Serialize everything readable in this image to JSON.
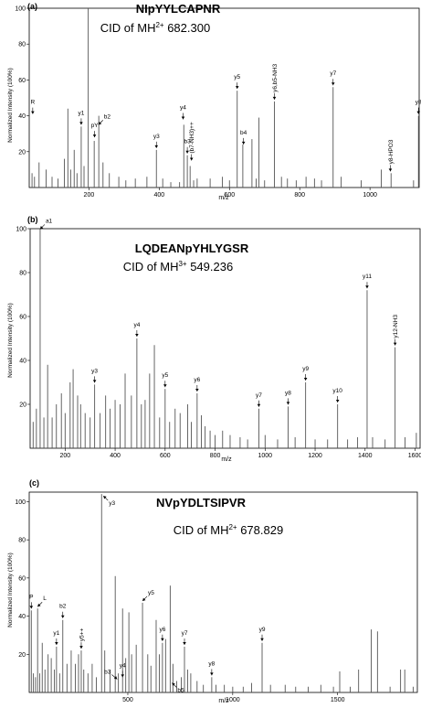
{
  "chart_data": [
    {
      "type": "bar",
      "panel_label": "(a)",
      "peptide": "NIpYYLCAPNR",
      "subtitle_prefix": "CID of MH",
      "charge": "2+",
      "precursor_mz": "682.300",
      "xlabel": "m/z",
      "ylabel": "Normalized Intensity (100%)",
      "xlim": [
        30,
        1140
      ],
      "ylim": [
        0,
        100
      ],
      "xticks": [
        200,
        400,
        600,
        800,
        1000
      ],
      "yticks": [
        20,
        40,
        60,
        80,
        100
      ],
      "peaks": [
        [
          38,
          8
        ],
        [
          45,
          6
        ],
        [
          58,
          14
        ],
        [
          78,
          10
        ],
        [
          95,
          6
        ],
        [
          112,
          5
        ],
        [
          130,
          16
        ],
        [
          140,
          44
        ],
        [
          148,
          10
        ],
        [
          158,
          21
        ],
        [
          166,
          8
        ],
        [
          178,
          34
        ],
        [
          186,
          12
        ],
        [
          198,
          100
        ],
        [
          215,
          26
        ],
        [
          228,
          40
        ],
        [
          240,
          14
        ],
        [
          258,
          8
        ],
        [
          285,
          6
        ],
        [
          305,
          4
        ],
        [
          332,
          5
        ],
        [
          365,
          6
        ],
        [
          392,
          21
        ],
        [
          410,
          5
        ],
        [
          433,
          3
        ],
        [
          458,
          3
        ],
        [
          470,
          35
        ],
        [
          480,
          18
        ],
        [
          488,
          12
        ],
        [
          498,
          4
        ],
        [
          508,
          5
        ],
        [
          545,
          5
        ],
        [
          580,
          6
        ],
        [
          600,
          4
        ],
        [
          622,
          54
        ],
        [
          638,
          24
        ],
        [
          664,
          27
        ],
        [
          676,
          5
        ],
        [
          684,
          39
        ],
        [
          700,
          4
        ],
        [
          728,
          48
        ],
        [
          748,
          6
        ],
        [
          765,
          5
        ],
        [
          790,
          4
        ],
        [
          818,
          6
        ],
        [
          842,
          5
        ],
        [
          862,
          4
        ],
        [
          895,
          56
        ],
        [
          918,
          6
        ],
        [
          975,
          4
        ],
        [
          1032,
          10
        ],
        [
          1060,
          8
        ],
        [
          1124,
          4
        ],
        [
          1138,
          40
        ]
      ],
      "annotations": [
        {
          "text": "R",
          "x": 40,
          "y": 40,
          "dir": "down"
        },
        {
          "text": "y1",
          "x": 178,
          "y": 34,
          "dir": "down"
        },
        {
          "text": "pY",
          "x": 216,
          "y": 27,
          "dir": "down"
        },
        {
          "text": "b2",
          "x": 227,
          "y": 34,
          "dir": "ul"
        },
        {
          "text": "y3",
          "x": 392,
          "y": 21,
          "dir": "down"
        },
        {
          "text": "y4",
          "x": 468,
          "y": 37,
          "dir": "down"
        },
        {
          "text": "b3",
          "x": 480,
          "y": 18,
          "dir": "down"
        },
        {
          "text": "(b7-NH3)++",
          "x": 492,
          "y": 14,
          "dir": "down",
          "rot": true
        },
        {
          "text": "y5",
          "x": 622,
          "y": 54,
          "dir": "down"
        },
        {
          "text": "b4",
          "x": 640,
          "y": 23,
          "dir": "down"
        },
        {
          "text": "y6,b5-NH3",
          "x": 728,
          "y": 48,
          "dir": "down",
          "rot": true
        },
        {
          "text": "y7",
          "x": 895,
          "y": 56,
          "dir": "down"
        },
        {
          "text": "y8-HPO3",
          "x": 1058,
          "y": 8,
          "dir": "down",
          "rot": true
        },
        {
          "text": "y8",
          "x": 1138,
          "y": 40,
          "dir": "down"
        }
      ]
    },
    {
      "type": "bar",
      "panel_label": "(b)",
      "peptide": "LQDEANpYHLYGSR",
      "subtitle_prefix": "CID of MH",
      "charge": "3+",
      "precursor_mz": "549.236",
      "xlabel": "m/z",
      "ylabel": "Normalized Intensity (100%)",
      "xlim": [
        60,
        1620
      ],
      "ylim": [
        0,
        100
      ],
      "xticks": [
        200,
        400,
        600,
        800,
        1000,
        1200,
        1400,
        1600
      ],
      "yticks": [
        20,
        40,
        60,
        80,
        100
      ],
      "peaks": [
        [
          72,
          12
        ],
        [
          85,
          18
        ],
        [
          100,
          100
        ],
        [
          115,
          14
        ],
        [
          130,
          38
        ],
        [
          148,
          14
        ],
        [
          165,
          20
        ],
        [
          185,
          25
        ],
        [
          200,
          16
        ],
        [
          220,
          30
        ],
        [
          232,
          36
        ],
        [
          250,
          24
        ],
        [
          262,
          20
        ],
        [
          280,
          16
        ],
        [
          300,
          14
        ],
        [
          318,
          29
        ],
        [
          340,
          16
        ],
        [
          362,
          24
        ],
        [
          380,
          18
        ],
        [
          400,
          22
        ],
        [
          420,
          20
        ],
        [
          440,
          34
        ],
        [
          465,
          24
        ],
        [
          487,
          50
        ],
        [
          505,
          20
        ],
        [
          520,
          22
        ],
        [
          538,
          34
        ],
        [
          557,
          47
        ],
        [
          578,
          14
        ],
        [
          600,
          27
        ],
        [
          618,
          12
        ],
        [
          640,
          18
        ],
        [
          660,
          16
        ],
        [
          690,
          20
        ],
        [
          705,
          12
        ],
        [
          728,
          25
        ],
        [
          745,
          15
        ],
        [
          760,
          10
        ],
        [
          780,
          8
        ],
        [
          800,
          6
        ],
        [
          830,
          8
        ],
        [
          860,
          6
        ],
        [
          900,
          5
        ],
        [
          930,
          4
        ],
        [
          975,
          18
        ],
        [
          1000,
          6
        ],
        [
          1050,
          4
        ],
        [
          1092,
          19
        ],
        [
          1120,
          5
        ],
        [
          1162,
          30
        ],
        [
          1200,
          4
        ],
        [
          1250,
          4
        ],
        [
          1290,
          20
        ],
        [
          1330,
          4
        ],
        [
          1370,
          5
        ],
        [
          1408,
          72
        ],
        [
          1430,
          5
        ],
        [
          1480,
          4
        ],
        [
          1520,
          46
        ],
        [
          1560,
          5
        ],
        [
          1605,
          7
        ]
      ],
      "annotations": [
        {
          "text": "a1",
          "x": 100,
          "y": 99,
          "dir": "ul"
        },
        {
          "text": "y3",
          "x": 318,
          "y": 29,
          "dir": "down"
        },
        {
          "text": "y4",
          "x": 487,
          "y": 50,
          "dir": "down"
        },
        {
          "text": "y5",
          "x": 600,
          "y": 27,
          "dir": "down"
        },
        {
          "text": "y6",
          "x": 728,
          "y": 25,
          "dir": "down"
        },
        {
          "text": "y7",
          "x": 975,
          "y": 18,
          "dir": "down"
        },
        {
          "text": "y8",
          "x": 1092,
          "y": 19,
          "dir": "down"
        },
        {
          "text": "y9",
          "x": 1162,
          "y": 30,
          "dir": "down"
        },
        {
          "text": "y10",
          "x": 1290,
          "y": 20,
          "dir": "down"
        },
        {
          "text": "y11",
          "x": 1408,
          "y": 72,
          "dir": "down"
        },
        {
          "text": "y12-NH3",
          "x": 1520,
          "y": 46,
          "dir": "down",
          "rot": true
        }
      ]
    },
    {
      "type": "bar",
      "panel_label": "(c)",
      "peptide": "NVpYDLTSIPVR",
      "subtitle_prefix": "CID of MH",
      "charge": "2+",
      "precursor_mz": "678.829",
      "xlabel": "m/z",
      "ylabel": "Normalized Intensity (100%)",
      "xlim": [
        30,
        1880
      ],
      "ylim": [
        0,
        105
      ],
      "xticks": [
        500,
        1000,
        1500
      ],
      "yticks": [
        20,
        40,
        60,
        80,
        100
      ],
      "peaks": [
        [
          40,
          43
        ],
        [
          50,
          10
        ],
        [
          60,
          8
        ],
        [
          70,
          44
        ],
        [
          80,
          10
        ],
        [
          92,
          26
        ],
        [
          105,
          12
        ],
        [
          120,
          20
        ],
        [
          135,
          18
        ],
        [
          150,
          12
        ],
        [
          160,
          24
        ],
        [
          175,
          10
        ],
        [
          190,
          38
        ],
        [
          210,
          15
        ],
        [
          230,
          22
        ],
        [
          250,
          15
        ],
        [
          265,
          20
        ],
        [
          278,
          22
        ],
        [
          290,
          12
        ],
        [
          310,
          10
        ],
        [
          330,
          15
        ],
        [
          350,
          8
        ],
        [
          375,
          104
        ],
        [
          390,
          22
        ],
        [
          415,
          12
        ],
        [
          440,
          61
        ],
        [
          455,
          10
        ],
        [
          475,
          44
        ],
        [
          490,
          18
        ],
        [
          505,
          42
        ],
        [
          518,
          20
        ],
        [
          540,
          25
        ],
        [
          570,
          47
        ],
        [
          595,
          20
        ],
        [
          610,
          14
        ],
        [
          635,
          38
        ],
        [
          650,
          20
        ],
        [
          665,
          26
        ],
        [
          680,
          28
        ],
        [
          702,
          56
        ],
        [
          715,
          15
        ],
        [
          733,
          6
        ],
        [
          755,
          8
        ],
        [
          770,
          24
        ],
        [
          785,
          12
        ],
        [
          800,
          10
        ],
        [
          830,
          6
        ],
        [
          860,
          4
        ],
        [
          900,
          8
        ],
        [
          920,
          4
        ],
        [
          960,
          4
        ],
        [
          1000,
          3
        ],
        [
          1050,
          3
        ],
        [
          1090,
          5
        ],
        [
          1140,
          26
        ],
        [
          1180,
          4
        ],
        [
          1250,
          4
        ],
        [
          1300,
          3
        ],
        [
          1360,
          3
        ],
        [
          1420,
          4
        ],
        [
          1480,
          3
        ],
        [
          1510,
          11
        ],
        [
          1560,
          3
        ],
        [
          1600,
          12
        ],
        [
          1660,
          33
        ],
        [
          1690,
          32
        ],
        [
          1750,
          3
        ],
        [
          1800,
          12
        ],
        [
          1820,
          12
        ],
        [
          1860,
          3
        ]
      ],
      "annotations": [
        {
          "text": "P",
          "x": 40,
          "y": 43,
          "dir": "down"
        },
        {
          "text": "L",
          "x": 70,
          "y": 44,
          "dir": "ul"
        },
        {
          "text": "b2",
          "x": 190,
          "y": 38,
          "dir": "down"
        },
        {
          "text": "y1",
          "x": 160,
          "y": 24,
          "dir": "down"
        },
        {
          "text": "y5++",
          "x": 278,
          "y": 22,
          "dir": "down",
          "rot": true
        },
        {
          "text": "y3",
          "x": 375,
          "y": 104,
          "dir": "dl"
        },
        {
          "text": "b3",
          "x": 445,
          "y": 6,
          "dir": "dr"
        },
        {
          "text": "y4",
          "x": 475,
          "y": 7,
          "dir": "down"
        },
        {
          "text": "y5",
          "x": 570,
          "y": 47,
          "dir": "ul"
        },
        {
          "text": "y6",
          "x": 665,
          "y": 26,
          "dir": "down"
        },
        {
          "text": "b5",
          "x": 702,
          "y": 6,
          "dir": "dl"
        },
        {
          "text": "y7",
          "x": 770,
          "y": 24,
          "dir": "down"
        },
        {
          "text": "y8",
          "x": 900,
          "y": 8,
          "dir": "down"
        },
        {
          "text": "y9",
          "x": 1140,
          "y": 26,
          "dir": "down"
        }
      ]
    }
  ]
}
